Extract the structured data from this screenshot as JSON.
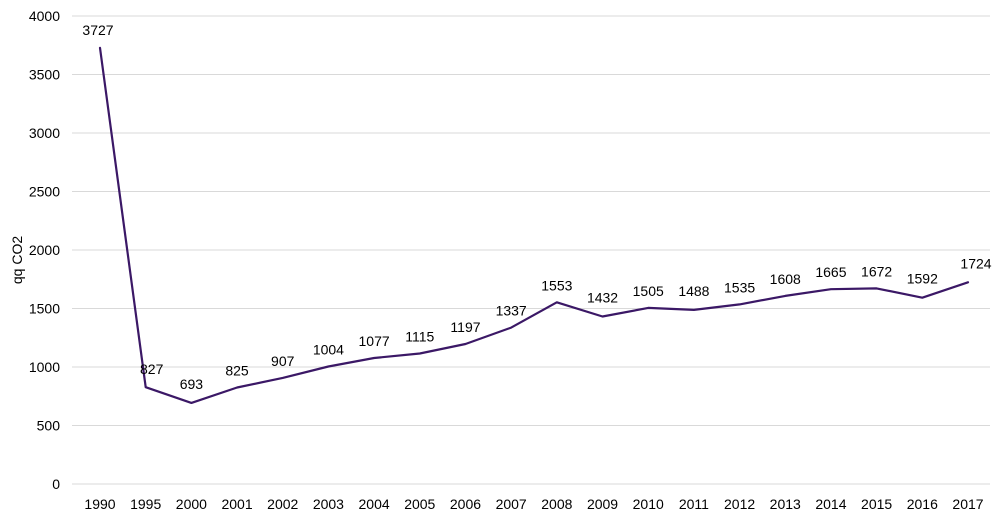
{
  "chart_data": {
    "type": "line",
    "title": "",
    "xlabel": "",
    "ylabel": "qq CO2",
    "categories": [
      "1990",
      "1995",
      "2000",
      "2001",
      "2002",
      "2003",
      "2004",
      "2005",
      "2006",
      "2007",
      "2008",
      "2009",
      "2010",
      "2011",
      "2012",
      "2013",
      "2014",
      "2015",
      "2016",
      "2017"
    ],
    "series": [
      {
        "values": [
          3727,
          827,
          693,
          825,
          907,
          1004,
          1077,
          1115,
          1197,
          1337,
          1553,
          1432,
          1505,
          1488,
          1535,
          1608,
          1665,
          1672,
          1592,
          1724
        ],
        "color": "#3b1866"
      }
    ],
    "data_labels": [
      "3727",
      "827",
      "693",
      "825",
      "907",
      "1004",
      "1077",
      "1115",
      "1197",
      "1337",
      "1553",
      "1432",
      "1505",
      "1488",
      "1535",
      "1608",
      "1665",
      "1672",
      "1592",
      "1724"
    ],
    "y_ticks": [
      0,
      500,
      1000,
      1500,
      2000,
      2500,
      3000,
      3500,
      4000
    ],
    "y_tick_labels": [
      "0",
      "500",
      "1000",
      "1500",
      "2000",
      "2500",
      "3000",
      "3500",
      "4000"
    ],
    "ylim": [
      0,
      4000
    ],
    "grid": true,
    "legend": "none"
  }
}
